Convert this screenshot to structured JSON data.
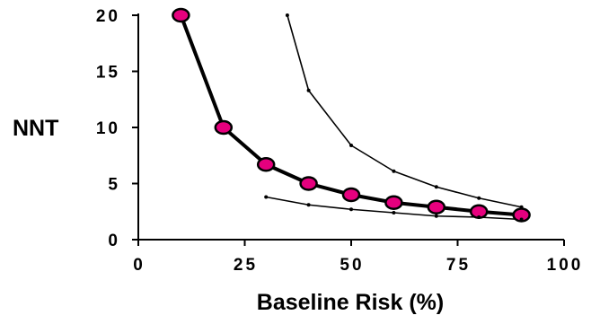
{
  "chart_data": {
    "type": "line",
    "title": "",
    "xlabel": "Baseline Risk (%)",
    "ylabel": "NNT",
    "xlim": [
      0,
      100
    ],
    "ylim": [
      0,
      20
    ],
    "xticks": [
      0,
      25,
      50,
      75,
      100
    ],
    "xtick_labels": [
      "0",
      "25",
      "50",
      "75",
      "100"
    ],
    "yticks": [
      0,
      5,
      10,
      15,
      20
    ],
    "ytick_labels": [
      "0",
      "5",
      "10",
      "15",
      "20"
    ],
    "grid": false,
    "legend": "none",
    "series": [
      {
        "x": [
          10,
          20,
          30,
          40,
          50,
          60,
          70,
          80,
          90
        ],
        "y": [
          20,
          10,
          6.7,
          5,
          4,
          3.3,
          2.9,
          2.5,
          2.2
        ],
        "color": "#000000",
        "marker": "ellipse",
        "marker_fill": "#e6007e",
        "line_style": "thick"
      },
      {
        "x": [
          35,
          40,
          50,
          60,
          70,
          80,
          90
        ],
        "y": [
          20,
          13.3,
          8.4,
          6.1,
          4.7,
          3.7,
          2.9
        ],
        "color": "#000000",
        "marker": "dot",
        "line_style": "thin"
      },
      {
        "x": [
          30,
          40,
          50,
          60,
          70,
          80,
          90
        ],
        "y": [
          3.8,
          3.1,
          2.7,
          2.4,
          2.1,
          2.0,
          1.8
        ],
        "color": "#000000",
        "marker": "dot",
        "line_style": "thin"
      }
    ]
  }
}
